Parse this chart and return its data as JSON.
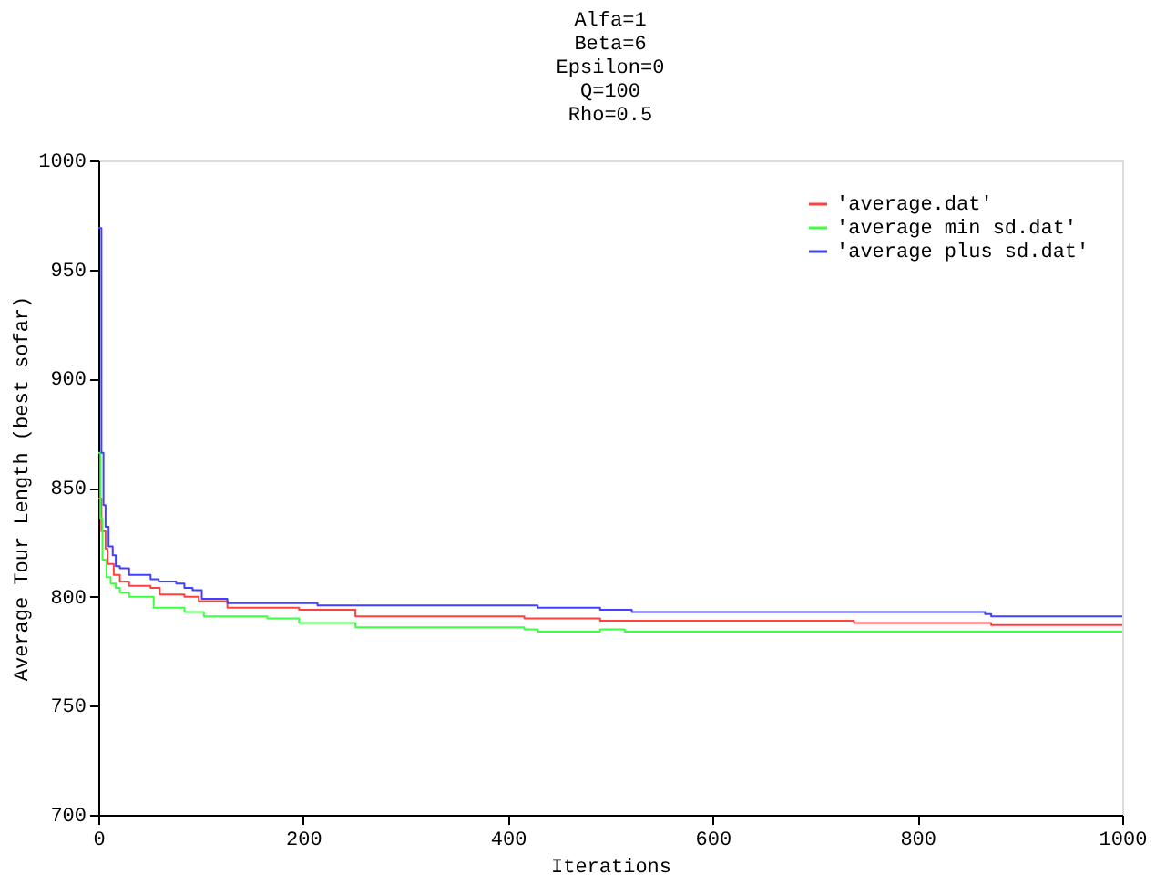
{
  "chart_data": {
    "type": "step",
    "title": "Alfa=1\nBeta=6\nEpsilon=0\nQ=100\nRho=0.5",
    "xlabel": "Iterations",
    "ylabel": "Average Tour Length (best sofar)",
    "xlim": [
      0,
      1000
    ],
    "xticks": [
      0,
      200,
      400,
      600,
      800,
      1000
    ],
    "ylim": [
      700,
      1000
    ],
    "yticks": [
      700,
      750,
      800,
      850,
      900,
      950,
      1000
    ],
    "grid": false,
    "legend": "top right",
    "marker": "none",
    "line_style": "solid",
    "series": [
      {
        "name": "'average.dat'",
        "color": "#ff4040",
        "x": [
          0,
          3,
          7,
          9,
          15,
          21,
          30,
          51,
          60,
          84,
          98,
          126,
          196,
          251,
          416,
          490,
          738,
          872,
          1000
        ],
        "values": [
          845,
          830,
          822,
          815,
          810,
          807,
          805,
          804,
          801,
          800,
          798,
          795,
          794,
          791,
          790,
          789,
          788,
          787,
          787
        ]
      },
      {
        "name": "'average min sd.dat'",
        "color": "#40ff40",
        "x": [
          0,
          2,
          4,
          8,
          12,
          17,
          21,
          30,
          54,
          84,
          103,
          165,
          196,
          251,
          416,
          429,
          490,
          514,
          1000
        ],
        "values": [
          866,
          836,
          817,
          809,
          806,
          804,
          802,
          800,
          795,
          793,
          791,
          790,
          788,
          786,
          785,
          784,
          785,
          784,
          784
        ]
      },
      {
        "name": "'average plus sd.dat'",
        "color": "#4040ff",
        "x": [
          0,
          3,
          5,
          7,
          10,
          14,
          17,
          21,
          30,
          51,
          59,
          76,
          84,
          92,
          101,
          126,
          165,
          214,
          429,
          490,
          521,
          866,
          872,
          1000
        ],
        "values": [
          969,
          866,
          842,
          832,
          823,
          819,
          814,
          813,
          810,
          808,
          807,
          806,
          804,
          803,
          799,
          797,
          797,
          796,
          795,
          794,
          793,
          792,
          791,
          791
        ]
      }
    ]
  }
}
